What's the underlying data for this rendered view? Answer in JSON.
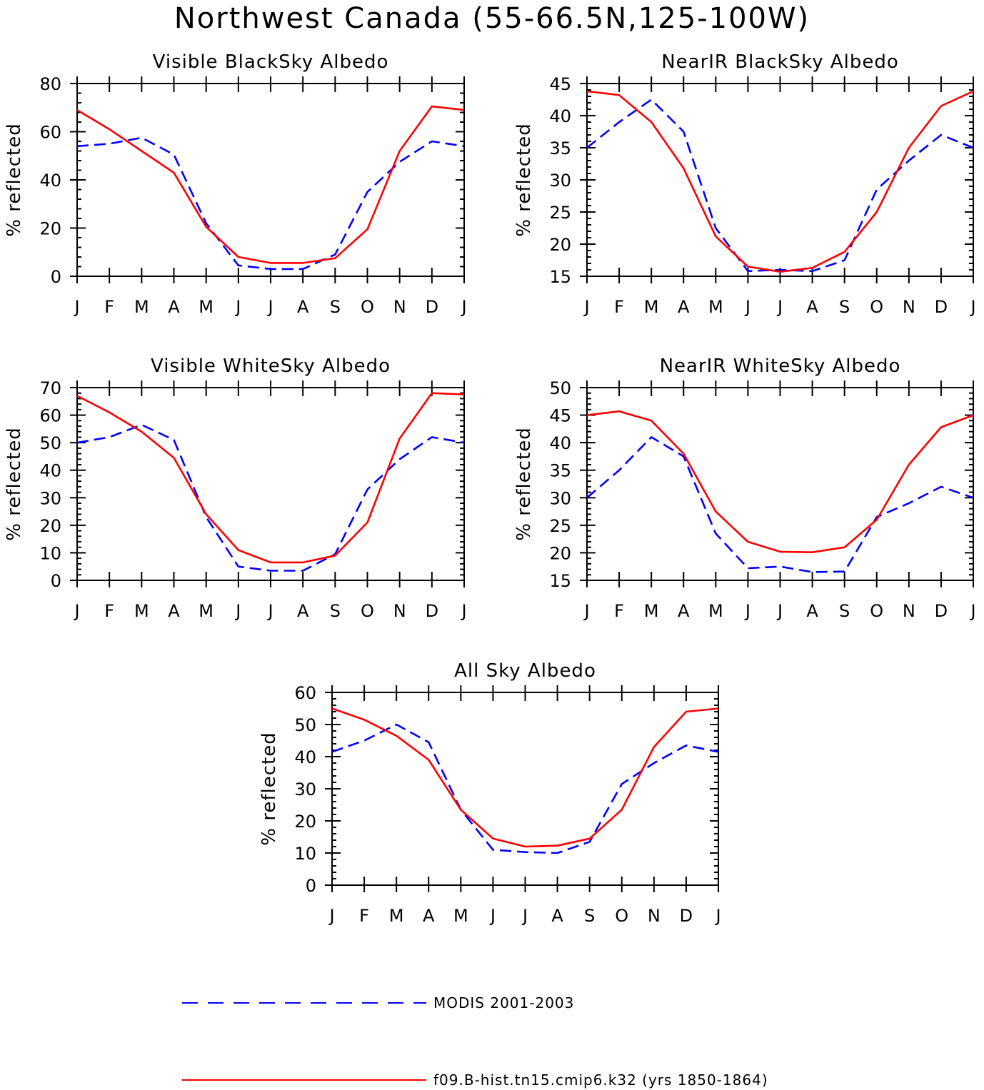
{
  "title": "Northwest Canada (55-66.5N,125-100W)",
  "colors": {
    "modis": "#0000ff",
    "model": "#ff0000",
    "axis": "#000000"
  },
  "legend": [
    {
      "label": "MODIS 2001-2003",
      "color": "#0000ff",
      "style": "dashed"
    },
    {
      "label": "f09.B-hist.tn15.cmip6.k32 (yrs 1850-1864)",
      "color": "#ff0000",
      "style": "solid"
    }
  ],
  "chart_data": [
    {
      "type": "line",
      "title": "Visible BlackSky Albedo",
      "ylabel": "% reflected",
      "categories": [
        "J",
        "F",
        "M",
        "A",
        "M",
        "J",
        "J",
        "A",
        "S",
        "O",
        "N",
        "D",
        "J"
      ],
      "ylim": [
        0,
        80
      ],
      "yticks": [
        0,
        20,
        40,
        60,
        80
      ],
      "series": [
        {
          "name": "MODIS 2001-2003",
          "color": "#0000ff",
          "style": "dashed",
          "values": [
            54,
            55,
            57.5,
            50.5,
            22,
            4.5,
            3,
            3,
            9,
            35,
            47.5,
            56,
            54
          ]
        },
        {
          "name": "f09.B-hist.tn15.cmip6.k32 (yrs 1850-1864)",
          "color": "#ff0000",
          "style": "solid",
          "values": [
            69,
            61,
            52,
            43,
            20.5,
            8,
            5.5,
            5.5,
            7.5,
            19.5,
            52,
            70.5,
            69
          ]
        }
      ]
    },
    {
      "type": "line",
      "title": "NearIR BlackSky Albedo",
      "ylabel": "% reflected",
      "categories": [
        "J",
        "F",
        "M",
        "A",
        "M",
        "J",
        "J",
        "A",
        "S",
        "O",
        "N",
        "D",
        "J"
      ],
      "ylim": [
        15,
        45
      ],
      "yticks": [
        15,
        20,
        25,
        30,
        35,
        40,
        45
      ],
      "series": [
        {
          "name": "MODIS 2001-2003",
          "color": "#0000ff",
          "style": "dashed",
          "values": [
            35,
            39,
            42.5,
            37.5,
            22.5,
            15.8,
            16,
            15.8,
            17.5,
            28.5,
            33,
            37,
            35
          ]
        },
        {
          "name": "f09.B-hist.tn15.cmip6.k32 (yrs 1850-1864)",
          "color": "#ff0000",
          "style": "solid",
          "values": [
            43.8,
            43.2,
            39,
            31.8,
            21.2,
            16.5,
            15.7,
            16.3,
            18.8,
            25,
            35,
            41.5,
            43.8
          ]
        }
      ]
    },
    {
      "type": "line",
      "title": "Visible WhiteSky Albedo",
      "ylabel": "% reflected",
      "categories": [
        "J",
        "F",
        "M",
        "A",
        "M",
        "J",
        "J",
        "A",
        "S",
        "O",
        "N",
        "D",
        "J"
      ],
      "ylim": [
        0,
        70
      ],
      "yticks": [
        0,
        10,
        20,
        30,
        40,
        50,
        60,
        70
      ],
      "series": [
        {
          "name": "MODIS 2001-2003",
          "color": "#0000ff",
          "style": "dashed",
          "values": [
            50,
            52,
            56.5,
            51,
            23,
            5,
            3.5,
            3.5,
            9.5,
            33,
            44,
            52,
            50
          ]
        },
        {
          "name": "f09.B-hist.tn15.cmip6.k32 (yrs 1850-1864)",
          "color": "#ff0000",
          "style": "solid",
          "values": [
            67,
            61,
            54,
            44.5,
            24,
            11,
            6.5,
            6.5,
            9,
            21,
            51.5,
            68,
            67.5
          ]
        }
      ]
    },
    {
      "type": "line",
      "title": "NearIR WhiteSky Albedo",
      "ylabel": "% reflected",
      "categories": [
        "J",
        "F",
        "M",
        "A",
        "M",
        "J",
        "J",
        "A",
        "S",
        "O",
        "N",
        "D",
        "J"
      ],
      "ylim": [
        15,
        50
      ],
      "yticks": [
        15,
        20,
        25,
        30,
        35,
        40,
        45,
        50
      ],
      "series": [
        {
          "name": "MODIS 2001-2003",
          "color": "#0000ff",
          "style": "dashed",
          "values": [
            30,
            35,
            41,
            37.5,
            23.5,
            17.2,
            17.5,
            16.5,
            16.6,
            26.5,
            29,
            32,
            30
          ]
        },
        {
          "name": "f09.B-hist.tn15.cmip6.k32 (yrs 1850-1864)",
          "color": "#ff0000",
          "style": "solid",
          "values": [
            45,
            45.7,
            44,
            38,
            27.5,
            22,
            20.2,
            20.1,
            21,
            26,
            36,
            42.8,
            45
          ]
        }
      ]
    },
    {
      "type": "line",
      "title": "All Sky Albedo",
      "ylabel": "% reflected",
      "categories": [
        "J",
        "F",
        "M",
        "A",
        "M",
        "J",
        "J",
        "A",
        "S",
        "O",
        "N",
        "D",
        "J"
      ],
      "ylim": [
        0,
        60
      ],
      "yticks": [
        0,
        10,
        20,
        30,
        40,
        50,
        60
      ],
      "series": [
        {
          "name": "MODIS 2001-2003",
          "color": "#0000ff",
          "style": "dashed",
          "values": [
            41.5,
            45,
            50,
            44.5,
            23.5,
            11,
            10.3,
            10,
            13.5,
            31.5,
            38,
            43.5,
            41.5
          ]
        },
        {
          "name": "f09.B-hist.tn15.cmip6.k32 (yrs 1850-1864)",
          "color": "#ff0000",
          "style": "solid",
          "values": [
            55,
            51.5,
            46.5,
            39,
            23.5,
            14.5,
            12,
            12.3,
            14.5,
            23.5,
            43,
            54,
            55
          ]
        }
      ]
    }
  ]
}
